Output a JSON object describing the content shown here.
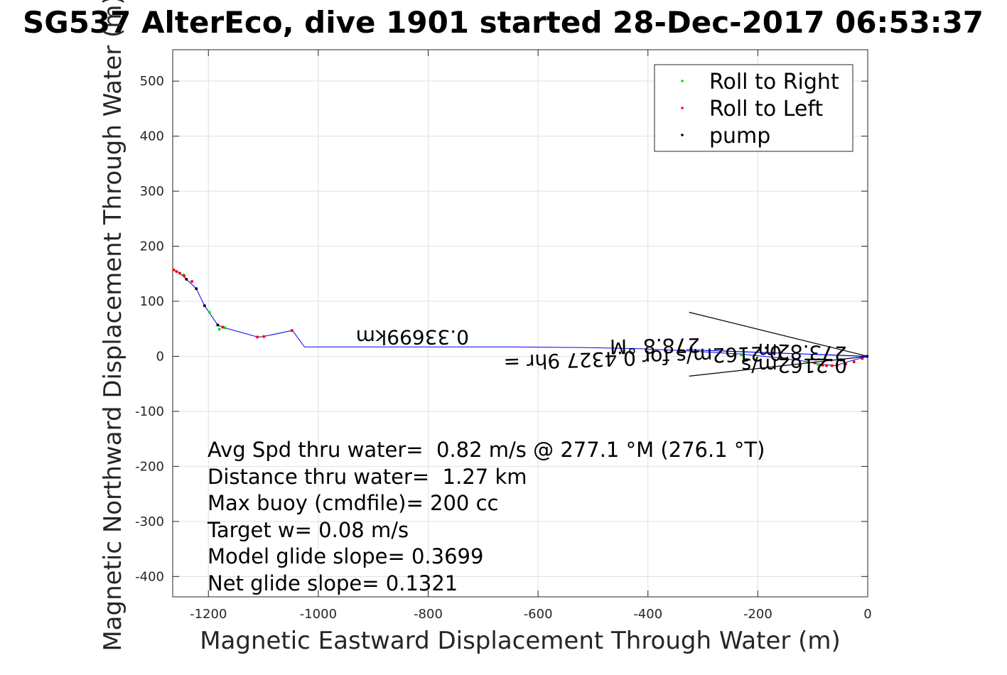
{
  "chart_data": {
    "type": "line",
    "title": "SG537 AlterEco, dive 1901 started 28-Dec-2017 06:53:37",
    "xlabel": "Magnetic Eastward Displacement Through Water (m)",
    "ylabel": "Magnetic Northward Displacement Through Water (m)",
    "xlim": [
      -1265,
      0
    ],
    "ylim": [
      -437,
      557
    ],
    "x_ticks": [
      -1200,
      -1000,
      -800,
      -600,
      -400,
      -200,
      0
    ],
    "y_ticks": [
      500,
      400,
      300,
      200,
      100,
      0,
      -100,
      -200,
      -300,
      -400
    ],
    "grid": true,
    "legend_position": "top-right",
    "legend": [
      {
        "label": "Roll to Right",
        "color": "#00dd00"
      },
      {
        "label": "Roll to Left",
        "color": "#ff0000"
      },
      {
        "label": "pump",
        "color": "#000000"
      }
    ],
    "track": {
      "color": "#0000ff",
      "x": [
        0,
        -30,
        -60,
        -90,
        -120,
        -160,
        -230,
        -330,
        -420,
        -520,
        -640,
        -760,
        -880,
        -1000,
        -1025,
        -1047,
        -1100,
        -1110,
        -1175,
        -1183,
        -1207,
        -1222,
        -1240,
        -1253,
        -1265
      ],
      "y": [
        0,
        -8,
        -17,
        -14,
        -8,
        -3,
        4,
        10,
        14,
        16,
        17,
        17,
        17,
        17,
        17,
        47,
        36,
        35,
        53,
        57,
        92,
        123,
        140,
        152,
        157
      ]
    },
    "roll_right_points": {
      "x": [
        -110,
        -90,
        -230,
        -1170,
        -1180,
        -1198,
        -1245
      ],
      "y": [
        -10,
        -15,
        3,
        52,
        49,
        80,
        148
      ]
    },
    "roll_left_points": {
      "x": [
        -2,
        -10,
        -25,
        -40,
        -55,
        -65,
        -75,
        -82,
        -96,
        -1048,
        -1099,
        -1111,
        -1174,
        -1230,
        -1244,
        -1252,
        -1258,
        -1263
      ],
      "y": [
        0,
        -4,
        -10,
        -14,
        -16,
        -17,
        -17,
        -16,
        -12,
        47,
        36,
        35,
        53,
        136,
        146,
        151,
        154,
        157
      ]
    },
    "pump_points": {
      "x": [
        -1,
        -1183,
        -1207,
        -1222,
        -1240
      ],
      "y": [
        0,
        57,
        92,
        123,
        140
      ]
    },
    "current_line": {
      "color": "#0000ff",
      "x": [
        0,
        -330
      ],
      "y": [
        0,
        12
      ]
    },
    "triangle_lines": {
      "color": "#000000",
      "x": [
        0,
        -325,
        0,
        -325
      ],
      "y": [
        0,
        80,
        0,
        -36
      ]
    },
    "rotated_labels": [
      "0.33699km",
      "278.8 °M",
      "0.2162m/s for 0.4327 9hr =",
      "0.2162m/s",
      "273.82m"
    ],
    "stats": [
      "Avg Spd thru water=  0.82 m/s @ 277.1 °M (276.1 °T)",
      "Distance thru water=  1.27 km",
      "Max buoy (cmdfile)= 200 cc",
      "Target w= 0.08 m/s",
      "Model glide slope= 0.3699",
      "Net glide slope= 0.1321"
    ]
  }
}
